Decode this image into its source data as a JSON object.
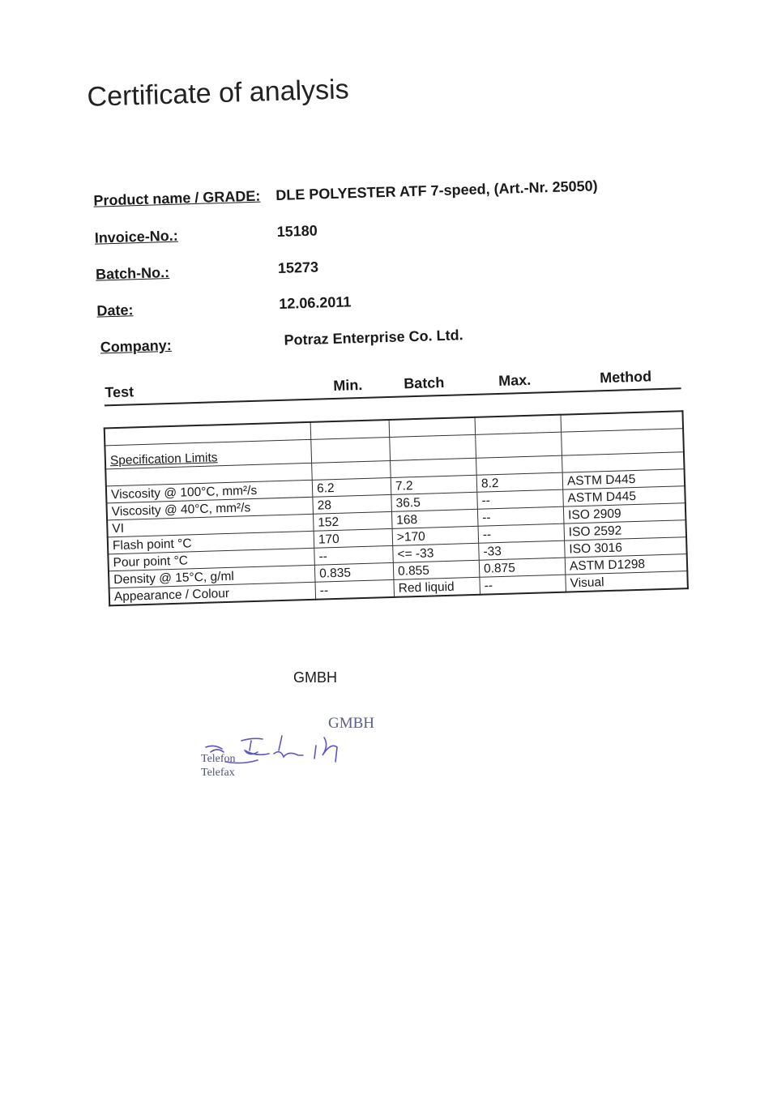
{
  "title": "Certificate of analysis",
  "fields": [
    {
      "label": "Product name / GRADE:",
      "value": "DLE POLYESTER ATF 7-speed, (Art.-Nr. 25050)"
    },
    {
      "label": "Invoice-No.:",
      "value": "15180"
    },
    {
      "label": "Batch-No.:",
      "value": "15273"
    },
    {
      "label": "Date:",
      "value": "12.06.2011"
    },
    {
      "label": "Company:",
      "value": "Potraz Enterprise Co. Ltd."
    }
  ],
  "table": {
    "headers": {
      "test": "Test",
      "min": "Min.",
      "batch": "Batch",
      "max": "Max.",
      "method": "Method"
    },
    "section_label": "Specification Limits",
    "rows": [
      {
        "test": "Viscosity @ 100°C, mm²/s",
        "min": "6.2",
        "batch": "7.2",
        "max": "8.2",
        "method": "ASTM D445"
      },
      {
        "test": "Viscosity @ 40°C, mm²/s",
        "min": "28",
        "batch": "36.5",
        "max": "--",
        "method": "ASTM D445"
      },
      {
        "test": "VI",
        "min": "152",
        "batch": "168",
        "max": "--",
        "method": "ISO 2909"
      },
      {
        "test": "Flash point °C",
        "min": "170",
        "batch": ">170",
        "max": "--",
        "method": "ISO 2592"
      },
      {
        "test": "Pour point °C",
        "min": "--",
        "batch": "<= -33",
        "max": "-33",
        "method": "ISO 3016"
      },
      {
        "test": "Density @ 15°C, g/ml",
        "min": "0.835",
        "batch": "0.855",
        "max": "0.875",
        "method": "ASTM D1298"
      },
      {
        "test": "Appearance / Colour",
        "min": "--",
        "batch": "Red liquid",
        "max": "--",
        "method": "Visual"
      }
    ]
  },
  "footer": {
    "company_suffix": "GMBH",
    "stamp": {
      "company_suffix": "GMBH",
      "telefon": "Telefon",
      "telefax": "Telefax",
      "ink_color": "#5a5f8c"
    }
  }
}
